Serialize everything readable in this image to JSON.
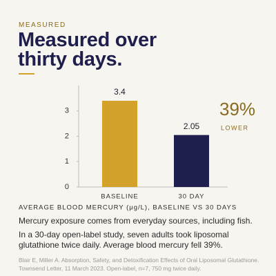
{
  "eyebrow": "MEASURED",
  "headline": [
    "Measured over",
    "thirty days."
  ],
  "chart_data": {
    "type": "bar",
    "title": "AVERAGE BLOOD MERCURY (μg/L), BASELINE VS 30 DAYS",
    "categories": [
      "BASELINE",
      "30 DAY"
    ],
    "values": [
      3.4,
      2.05
    ],
    "colors": [
      "#d4a12a",
      "#1f1f4d"
    ],
    "ylim": [
      0,
      4
    ],
    "yticks": [
      0,
      1,
      2,
      3
    ],
    "grid": false
  },
  "callout": {
    "value": "39%",
    "label": "LOWER"
  },
  "body": [
    "Mercury exposure comes from everyday sources, including fish.",
    "In a 30-day open-label study, seven adults took liposomal glutathione twice daily. Average blood mercury fell 39%."
  ],
  "citation": "Blair E, Miller A. Absorption, Safety, and Detoxification Effects of Oral Liposomal Glutathione. Townsend Letter, 11 March 2023. Open-label, n=7, 750 mg twice daily."
}
